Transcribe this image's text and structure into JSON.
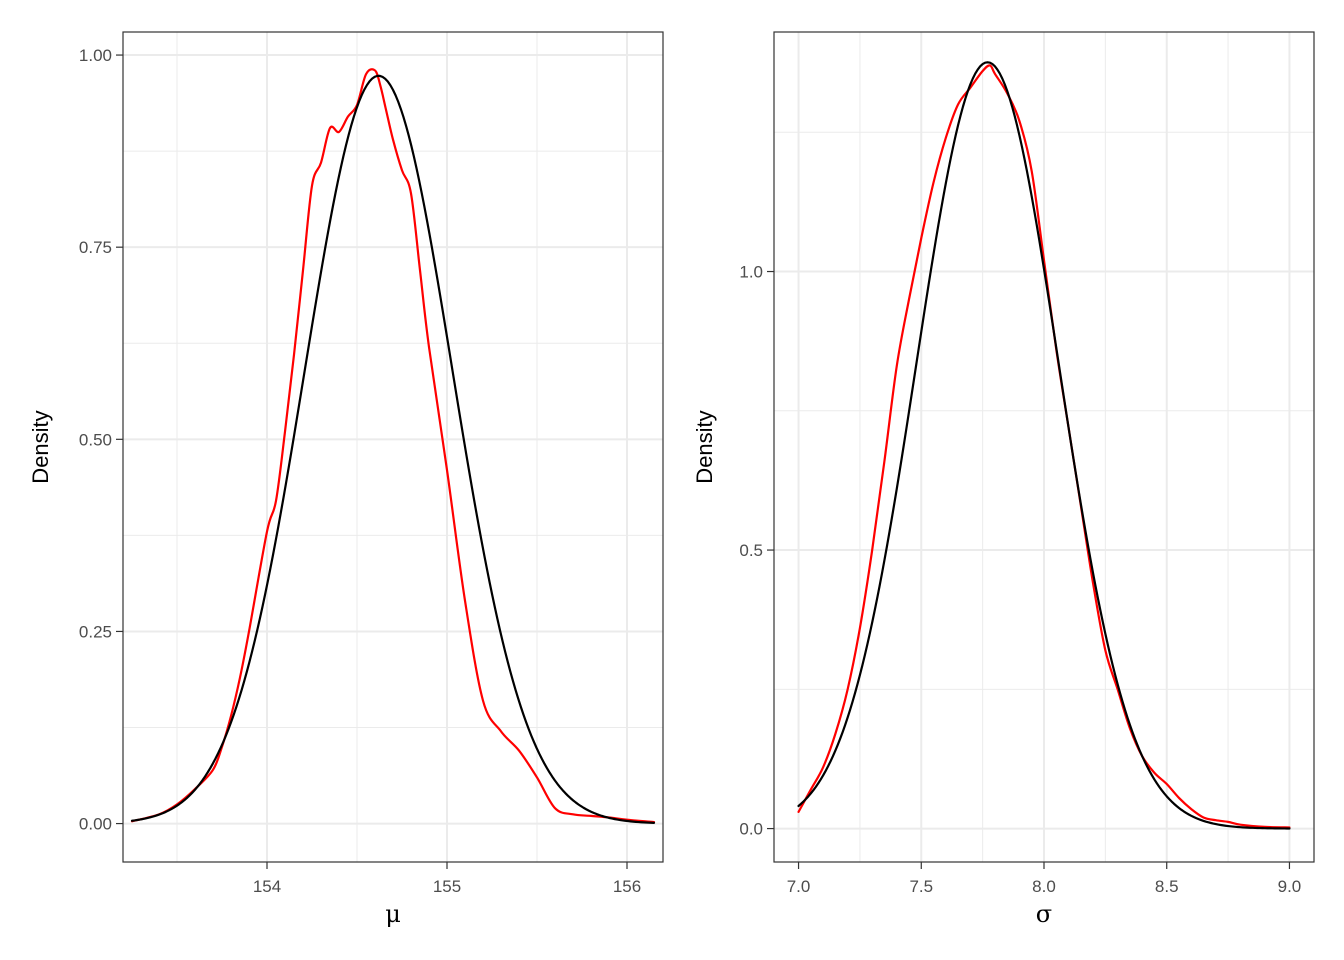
{
  "chart_data": [
    {
      "type": "line",
      "xlabel": "μ",
      "ylabel": "Density",
      "xlim": [
        153.2,
        156.2
      ],
      "ylim": [
        -0.05,
        1.03
      ],
      "xticks": [
        154,
        155,
        156
      ],
      "xtick_labels": [
        "154",
        "155",
        "156"
      ],
      "yticks": [
        0,
        0.25,
        0.5,
        0.75,
        1
      ],
      "ytick_labels": [
        "0.00",
        "0.25",
        "0.50",
        "0.75",
        "1.00"
      ],
      "grid": true,
      "series": [
        {
          "color": "#ff0000",
          "x": [
            153.25,
            153.4,
            153.5,
            153.6,
            153.7,
            153.75,
            153.8,
            153.85,
            153.9,
            154.0,
            154.05,
            154.1,
            154.15,
            154.2,
            154.25,
            154.3,
            154.35,
            154.4,
            154.45,
            154.5,
            154.55,
            154.6,
            154.63,
            154.66,
            154.7,
            154.75,
            154.8,
            154.85,
            154.9,
            155.0,
            155.1,
            155.2,
            155.3,
            155.4,
            155.5,
            155.6,
            155.7,
            155.8,
            155.9,
            156.0,
            156.15
          ],
          "y": [
            0.003,
            0.012,
            0.025,
            0.045,
            0.07,
            0.1,
            0.14,
            0.19,
            0.25,
            0.38,
            0.42,
            0.51,
            0.61,
            0.72,
            0.83,
            0.86,
            0.905,
            0.9,
            0.92,
            0.935,
            0.975,
            0.98,
            0.96,
            0.93,
            0.89,
            0.85,
            0.82,
            0.72,
            0.62,
            0.46,
            0.29,
            0.16,
            0.12,
            0.095,
            0.06,
            0.02,
            0.012,
            0.01,
            0.008,
            0.005,
            0.002
          ]
        },
        {
          "color": "#000000",
          "mean": 154.62,
          "sd": 0.41,
          "x_range": [
            153.25,
            156.15
          ]
        }
      ]
    },
    {
      "type": "line",
      "xlabel": "σ",
      "ylabel": "Density",
      "xlim": [
        6.9,
        9.1
      ],
      "ylim": [
        -0.06,
        1.43
      ],
      "xticks": [
        7.0,
        7.5,
        8.0,
        8.5,
        9.0
      ],
      "xtick_labels": [
        "7.0",
        "7.5",
        "8.0",
        "8.5",
        "9.0"
      ],
      "yticks": [
        0,
        0.5,
        1
      ],
      "ytick_labels": [
        "0.0",
        "0.5",
        "1.0"
      ],
      "grid": true,
      "series": [
        {
          "color": "#ff0000",
          "x": [
            7.0,
            7.05,
            7.1,
            7.15,
            7.2,
            7.25,
            7.3,
            7.35,
            7.4,
            7.45,
            7.5,
            7.55,
            7.6,
            7.65,
            7.7,
            7.75,
            7.78,
            7.8,
            7.85,
            7.9,
            7.95,
            8.0,
            8.05,
            8.1,
            8.15,
            8.2,
            8.25,
            8.3,
            8.35,
            8.4,
            8.45,
            8.5,
            8.55,
            8.6,
            8.65,
            8.7,
            8.75,
            8.8,
            8.9,
            9.0
          ],
          "y": [
            0.03,
            0.07,
            0.11,
            0.17,
            0.25,
            0.36,
            0.5,
            0.66,
            0.83,
            0.95,
            1.06,
            1.16,
            1.24,
            1.3,
            1.33,
            1.36,
            1.37,
            1.355,
            1.32,
            1.27,
            1.18,
            1.02,
            0.86,
            0.72,
            0.58,
            0.44,
            0.32,
            0.25,
            0.18,
            0.13,
            0.1,
            0.08,
            0.055,
            0.035,
            0.02,
            0.015,
            0.012,
            0.007,
            0.003,
            0.002
          ]
        },
        {
          "color": "#000000",
          "mean": 7.77,
          "sd": 0.29,
          "x_range": [
            7.0,
            9.0
          ]
        }
      ]
    }
  ]
}
